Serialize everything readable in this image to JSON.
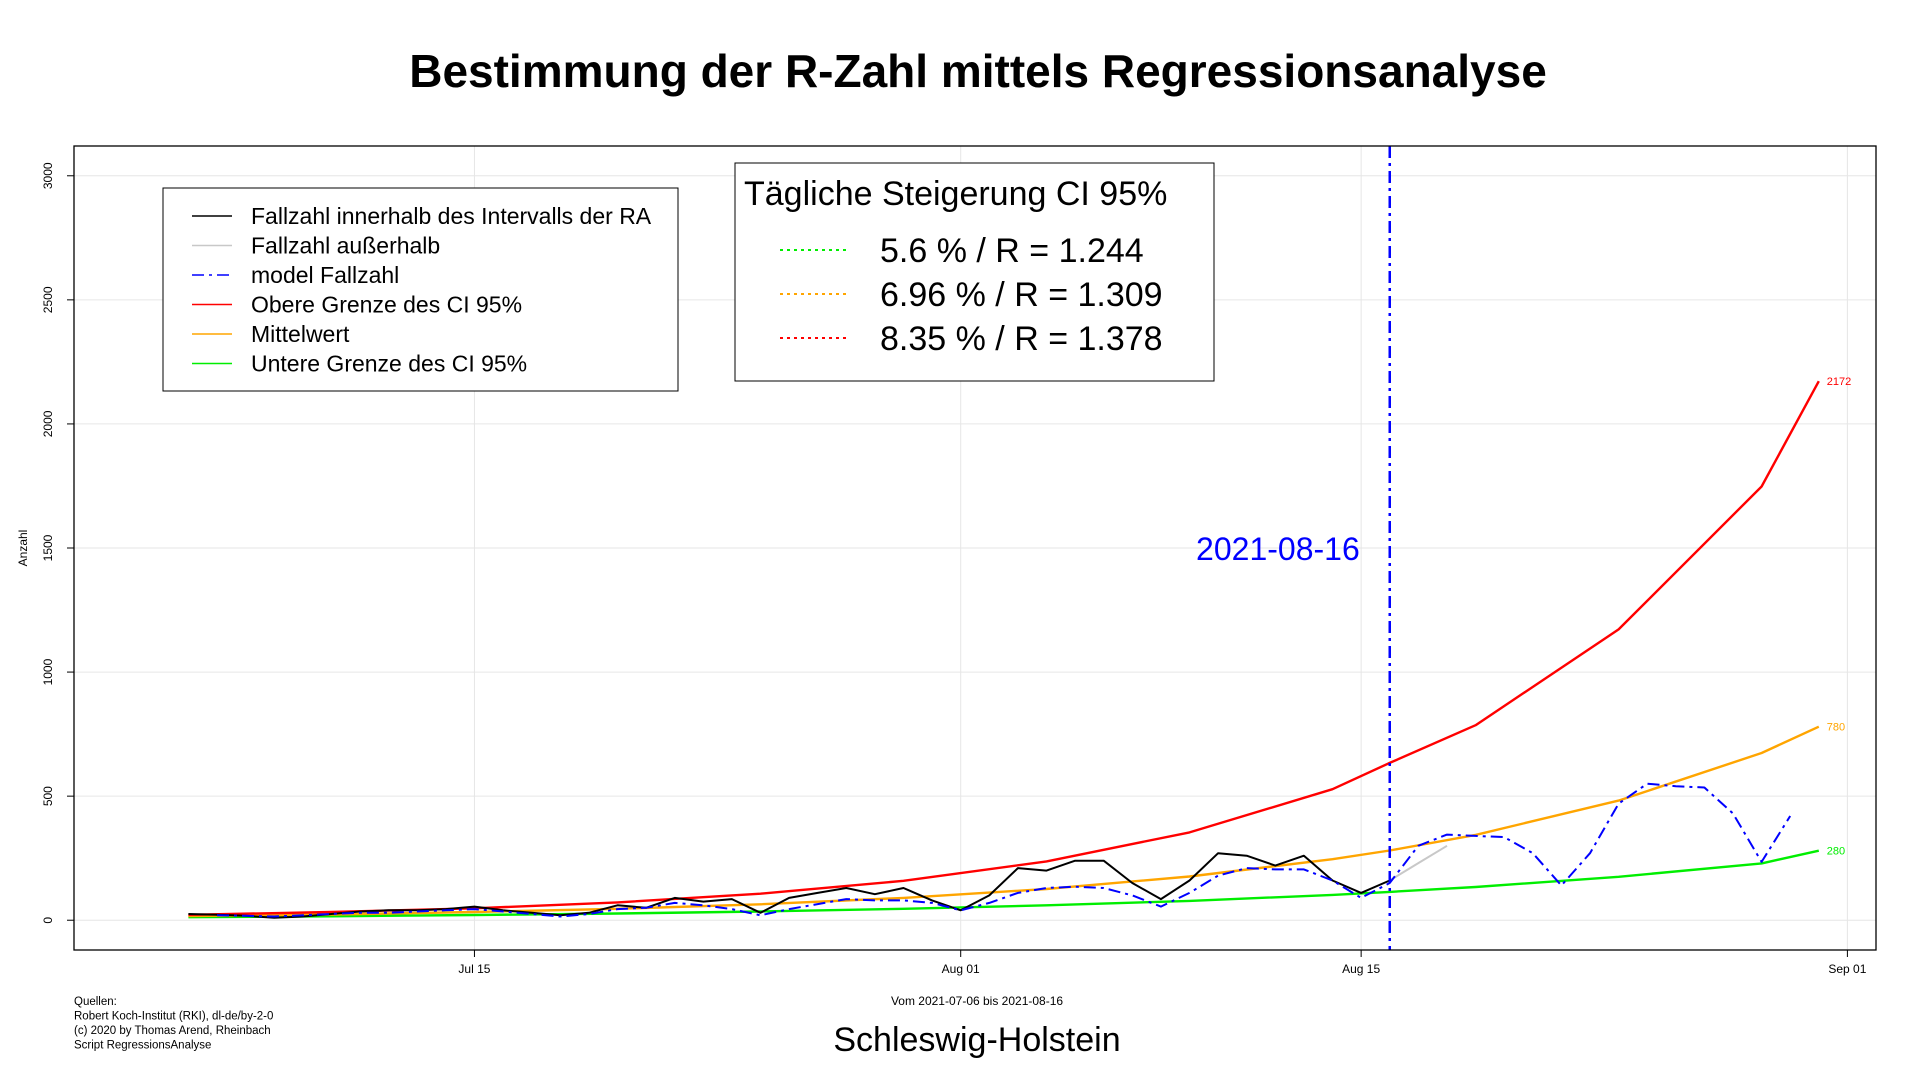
{
  "chart_data": {
    "type": "line",
    "title": "Bestimmung der R-Zahl mittels Regressionsanalyse",
    "subtitle": "Schleswig-Holstein",
    "xlabel": "Vom 2021-07-06 bis 2021-08-16",
    "ylabel": "Anzahl",
    "x_range": [
      "2021-07-01",
      "2021-09-02"
    ],
    "ylim": [
      -120,
      3120
    ],
    "x_ticks": [
      {
        "date": "2021-07-15",
        "label": "Jul 15"
      },
      {
        "date": "2021-08-01",
        "label": "Aug 01"
      },
      {
        "date": "2021-08-15",
        "label": "Aug 15"
      },
      {
        "date": "2021-09-01",
        "label": "Sep 01"
      }
    ],
    "y_ticks": [
      0,
      500,
      1000,
      1500,
      2000,
      2500,
      3000
    ],
    "grid": true,
    "vline": {
      "date": "2021-08-16",
      "label": "2021-08-16",
      "color": "#0000ff"
    },
    "legend": {
      "position": "top-left",
      "items": [
        {
          "label": "Fallzahl innerhalb des Intervalls der RA",
          "color": "#000000",
          "style": "solid"
        },
        {
          "label": "Fallzahl außerhalb",
          "color": "#c8c8c8",
          "style": "solid"
        },
        {
          "label": "model Fallzahl",
          "color": "#0000ff",
          "style": "dashdot"
        },
        {
          "label": "Obere Grenze des CI 95%",
          "color": "#ff0000",
          "style": "solid"
        },
        {
          "label": "Mittelwert",
          "color": "#ffa500",
          "style": "solid"
        },
        {
          "label": "Untere Grenze des CI 95%",
          "color": "#00ee00",
          "style": "solid"
        }
      ]
    },
    "ci_box": {
      "title": "Tägliche Steigerung CI  95%",
      "rows": [
        {
          "text": "5.6 % / R = 1.244",
          "color": "#00ee00"
        },
        {
          "text": "6.96 % / R = 1.309",
          "color": "#ffa500"
        },
        {
          "text": "8.35 % / R = 1.378",
          "color": "#ff0000"
        }
      ]
    },
    "series": [
      {
        "name": "Fallzahl innerhalb des Intervalls der RA",
        "color": "#000000",
        "x": [
          "2021-07-05",
          "2021-07-06",
          "2021-07-07",
          "2021-07-08",
          "2021-07-09",
          "2021-07-10",
          "2021-07-11",
          "2021-07-12",
          "2021-07-13",
          "2021-07-14",
          "2021-07-15",
          "2021-07-16",
          "2021-07-17",
          "2021-07-18",
          "2021-07-19",
          "2021-07-20",
          "2021-07-21",
          "2021-07-22",
          "2021-07-23",
          "2021-07-24",
          "2021-07-25",
          "2021-07-26",
          "2021-07-27",
          "2021-07-28",
          "2021-07-29",
          "2021-07-30",
          "2021-07-31",
          "2021-08-01",
          "2021-08-02",
          "2021-08-03",
          "2021-08-04",
          "2021-08-05",
          "2021-08-06",
          "2021-08-07",
          "2021-08-08",
          "2021-08-09",
          "2021-08-10",
          "2021-08-11",
          "2021-08-12",
          "2021-08-13",
          "2021-08-14",
          "2021-08-15",
          "2021-08-16"
        ],
        "values": [
          25,
          22,
          18,
          10,
          15,
          25,
          35,
          40,
          40,
          45,
          55,
          40,
          30,
          20,
          30,
          60,
          50,
          90,
          75,
          85,
          30,
          90,
          110,
          130,
          105,
          130,
          80,
          40,
          100,
          210,
          200,
          240,
          240,
          150,
          85,
          160,
          270,
          260,
          220,
          260,
          160,
          110,
          160
        ]
      },
      {
        "name": "Fallzahl außerhalb",
        "color": "#c8c8c8",
        "x": [
          "2021-08-16",
          "2021-08-17",
          "2021-08-18"
        ],
        "values": [
          160,
          230,
          300
        ]
      },
      {
        "name": "model Fallzahl",
        "color": "#0000ff",
        "x": [
          "2021-07-06",
          "2021-07-07",
          "2021-07-08",
          "2021-07-09",
          "2021-07-10",
          "2021-07-11",
          "2021-07-12",
          "2021-07-13",
          "2021-07-14",
          "2021-07-15",
          "2021-07-16",
          "2021-07-17",
          "2021-07-18",
          "2021-07-19",
          "2021-07-20",
          "2021-07-21",
          "2021-07-22",
          "2021-07-23",
          "2021-07-24",
          "2021-07-25",
          "2021-07-26",
          "2021-07-27",
          "2021-07-28",
          "2021-07-29",
          "2021-07-30",
          "2021-07-31",
          "2021-08-01",
          "2021-08-02",
          "2021-08-03",
          "2021-08-04",
          "2021-08-05",
          "2021-08-06",
          "2021-08-07",
          "2021-08-08",
          "2021-08-09",
          "2021-08-10",
          "2021-08-11",
          "2021-08-12",
          "2021-08-13",
          "2021-08-14",
          "2021-08-15",
          "2021-08-16",
          "2021-08-17",
          "2021-08-18",
          "2021-08-19",
          "2021-08-20",
          "2021-08-21",
          "2021-08-22",
          "2021-08-23",
          "2021-08-24",
          "2021-08-25",
          "2021-08-26",
          "2021-08-27",
          "2021-08-28",
          "2021-08-29",
          "2021-08-30",
          "2021-08-31"
        ],
        "values": [
          20,
          18,
          15,
          20,
          25,
          30,
          30,
          35,
          40,
          45,
          35,
          25,
          15,
          25,
          45,
          50,
          70,
          60,
          45,
          20,
          45,
          65,
          85,
          80,
          80,
          70,
          40,
          70,
          110,
          130,
          135,
          130,
          100,
          55,
          110,
          180,
          210,
          205,
          205,
          160,
          90,
          150,
          300,
          345,
          340,
          335,
          270,
          140,
          270,
          470,
          550,
          540,
          535,
          430,
          235,
          420,
          null
        ]
      },
      {
        "name": "Obere Grenze des CI 95%",
        "color": "#ff0000",
        "x": [
          "2021-07-05",
          "2021-07-10",
          "2021-07-15",
          "2021-07-20",
          "2021-07-25",
          "2021-07-30",
          "2021-08-04",
          "2021-08-09",
          "2021-08-14",
          "2021-08-16",
          "2021-08-19",
          "2021-08-24",
          "2021-08-29",
          "2021-08-31"
        ],
        "values": [
          22,
          33,
          48,
          72,
          107,
          159,
          237,
          354,
          528,
          634,
          786,
          1172,
          1748,
          2172
        ]
      },
      {
        "name": "Mittelwert",
        "color": "#ffa500",
        "x": [
          "2021-07-05",
          "2021-07-10",
          "2021-07-15",
          "2021-07-20",
          "2021-07-25",
          "2021-07-30",
          "2021-08-04",
          "2021-08-09",
          "2021-08-14",
          "2021-08-16",
          "2021-08-19",
          "2021-08-24",
          "2021-08-29",
          "2021-08-31"
        ],
        "values": [
          17,
          23,
          33,
          46,
          64,
          90,
          126,
          176,
          246,
          281,
          344,
          482,
          674,
          780
        ]
      },
      {
        "name": "Untere Grenze des CI 95%",
        "color": "#00ee00",
        "x": [
          "2021-07-05",
          "2021-07-10",
          "2021-07-15",
          "2021-07-20",
          "2021-07-25",
          "2021-07-30",
          "2021-08-04",
          "2021-08-09",
          "2021-08-14",
          "2021-08-16",
          "2021-08-19",
          "2021-08-24",
          "2021-08-29",
          "2021-08-31"
        ],
        "values": [
          12,
          16,
          21,
          27,
          35,
          46,
          60,
          78,
          102,
          114,
          134,
          175,
          229,
          280
        ]
      }
    ],
    "end_labels": [
      {
        "text": "2172",
        "value": 2172,
        "color": "#ff0000"
      },
      {
        "text": "780",
        "value": 780,
        "color": "#ffa500"
      },
      {
        "text": "280",
        "value": 280,
        "color": "#00ee00"
      }
    ],
    "sources": [
      "Quellen:",
      "Robert Koch-Institut (RKI), dl-de/by-2-0",
      "(c) 2020 by Thomas Arend, Rheinbach",
      "Script RegressionsAnalyse"
    ]
  }
}
